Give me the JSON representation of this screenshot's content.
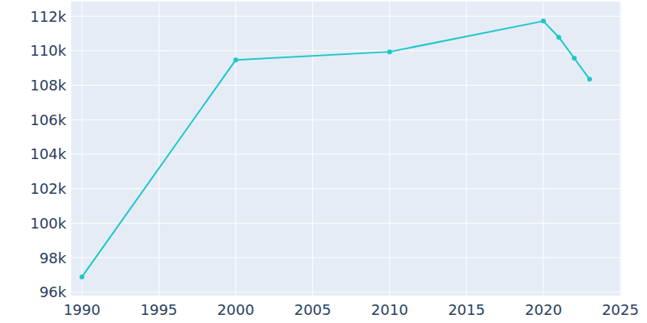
{
  "chart_data": {
    "type": "line",
    "x": [
      1990,
      2000,
      2010,
      2020,
      2021,
      2022,
      2023
    ],
    "series": [
      {
        "color": "#1cc8c8",
        "marker": "circle",
        "values": [
          96880,
          109470,
          109940,
          111720,
          110780,
          109570,
          108350
        ]
      }
    ],
    "xlim": [
      1989.3,
      2025.05
    ],
    "xticks": [
      1990,
      1995,
      2000,
      2005,
      2010,
      2015,
      2020,
      2025
    ],
    "ylim": [
      95800,
      112850
    ],
    "yticks": [
      {
        "value": 96000,
        "label": "96k"
      },
      {
        "value": 98000,
        "label": "98k"
      },
      {
        "value": 100000,
        "label": "100k"
      },
      {
        "value": 102000,
        "label": "102k"
      },
      {
        "value": 104000,
        "label": "104k"
      },
      {
        "value": 106000,
        "label": "106k"
      },
      {
        "value": 108000,
        "label": "108k"
      },
      {
        "value": 110000,
        "label": "110k"
      },
      {
        "value": 112000,
        "label": "112k"
      }
    ],
    "grid": true
  }
}
